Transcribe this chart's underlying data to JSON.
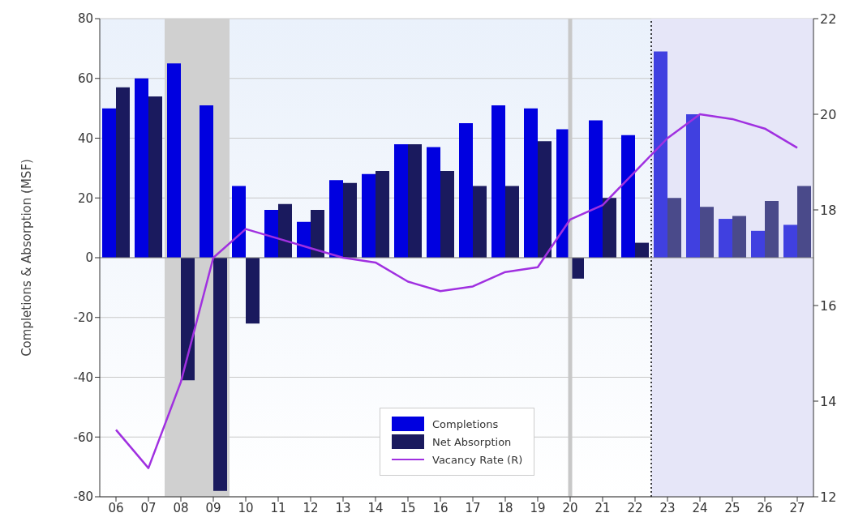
{
  "chart_data": {
    "type": "bar",
    "ylabel": "Completions & Absorption (MSF)",
    "categories": [
      "06",
      "07",
      "08",
      "09",
      "10",
      "11",
      "12",
      "13",
      "14",
      "15",
      "16",
      "17",
      "18",
      "19",
      "20",
      "21",
      "22",
      "23",
      "24",
      "25",
      "26",
      "27"
    ],
    "series": [
      {
        "name": "Completions",
        "color": "#0000e0",
        "colors": [
          "#0000e0",
          "#0000e0",
          "#0000e0",
          "#0000e0",
          "#0000e0",
          "#0000e0",
          "#0000e0",
          "#0000e0",
          "#0000e0",
          "#0000e0",
          "#0000e0",
          "#0000e0",
          "#0000e0",
          "#0000e0",
          "#0000e0",
          "#0000e0",
          "#0000e0",
          "#4040e0",
          "#4040e0",
          "#4040e0",
          "#4040e0",
          "#4040e0"
        ],
        "values": [
          50,
          60,
          65,
          51,
          24,
          16,
          12,
          26,
          28,
          38,
          37,
          45,
          51,
          50,
          43,
          46,
          41,
          69,
          48,
          13,
          9,
          11
        ]
      },
      {
        "name": "Net Absorption",
        "color": "#1a1a5e",
        "colors": [
          "#1a1a5e",
          "#1a1a5e",
          "#1a1a5e",
          "#1a1a5e",
          "#1a1a5e",
          "#1a1a5e",
          "#1a1a5e",
          "#1a1a5e",
          "#1a1a5e",
          "#1a1a5e",
          "#1a1a5e",
          "#1a1a5e",
          "#1a1a5e",
          "#1a1a5e",
          "#1a1a5e",
          "#1a1a5e",
          "#1a1a5e",
          "#4a4a8a",
          "#4a4a8a",
          "#4a4a8a",
          "#4a4a8a",
          "#4a4a8a"
        ],
        "values": [
          57,
          54,
          -41,
          -78,
          -22,
          18,
          16,
          25,
          29,
          38,
          29,
          24,
          24,
          39,
          -7,
          20,
          5,
          20,
          17,
          14,
          19,
          24
        ]
      },
      {
        "name": "Vacancy Rate (R)",
        "type": "line",
        "axis": "y2",
        "color": "#a030e0",
        "values": [
          13.4,
          12.6,
          14.4,
          17.0,
          17.6,
          17.4,
          17.2,
          17.0,
          16.9,
          16.5,
          16.3,
          16.4,
          16.7,
          16.8,
          17.8,
          18.1,
          18.8,
          19.5,
          20.0,
          19.9,
          19.7,
          19.3
        ]
      }
    ],
    "ylim": [
      -80,
      80
    ],
    "yticks": [
      -80,
      -60,
      -40,
      -20,
      0,
      20,
      40,
      60,
      80
    ],
    "y2lim": [
      12,
      22
    ],
    "y2ticks": [
      12,
      14,
      16,
      18,
      20,
      22
    ],
    "bands": [
      {
        "axis": "x",
        "from": "08",
        "to": "09",
        "color": "#d0d0d0"
      },
      {
        "axis": "x",
        "from": "23",
        "to": "27",
        "color": "#e6e6f8"
      }
    ],
    "ref_lines": [
      {
        "axis": "x",
        "value": "20",
        "color": "#c8c8c8"
      },
      {
        "axis": "x",
        "value": "23",
        "color": "#000000",
        "line_style": "dotted"
      }
    ],
    "grid": "y",
    "legend": "bottom",
    "marker": "none",
    "line_style": "solid"
  }
}
